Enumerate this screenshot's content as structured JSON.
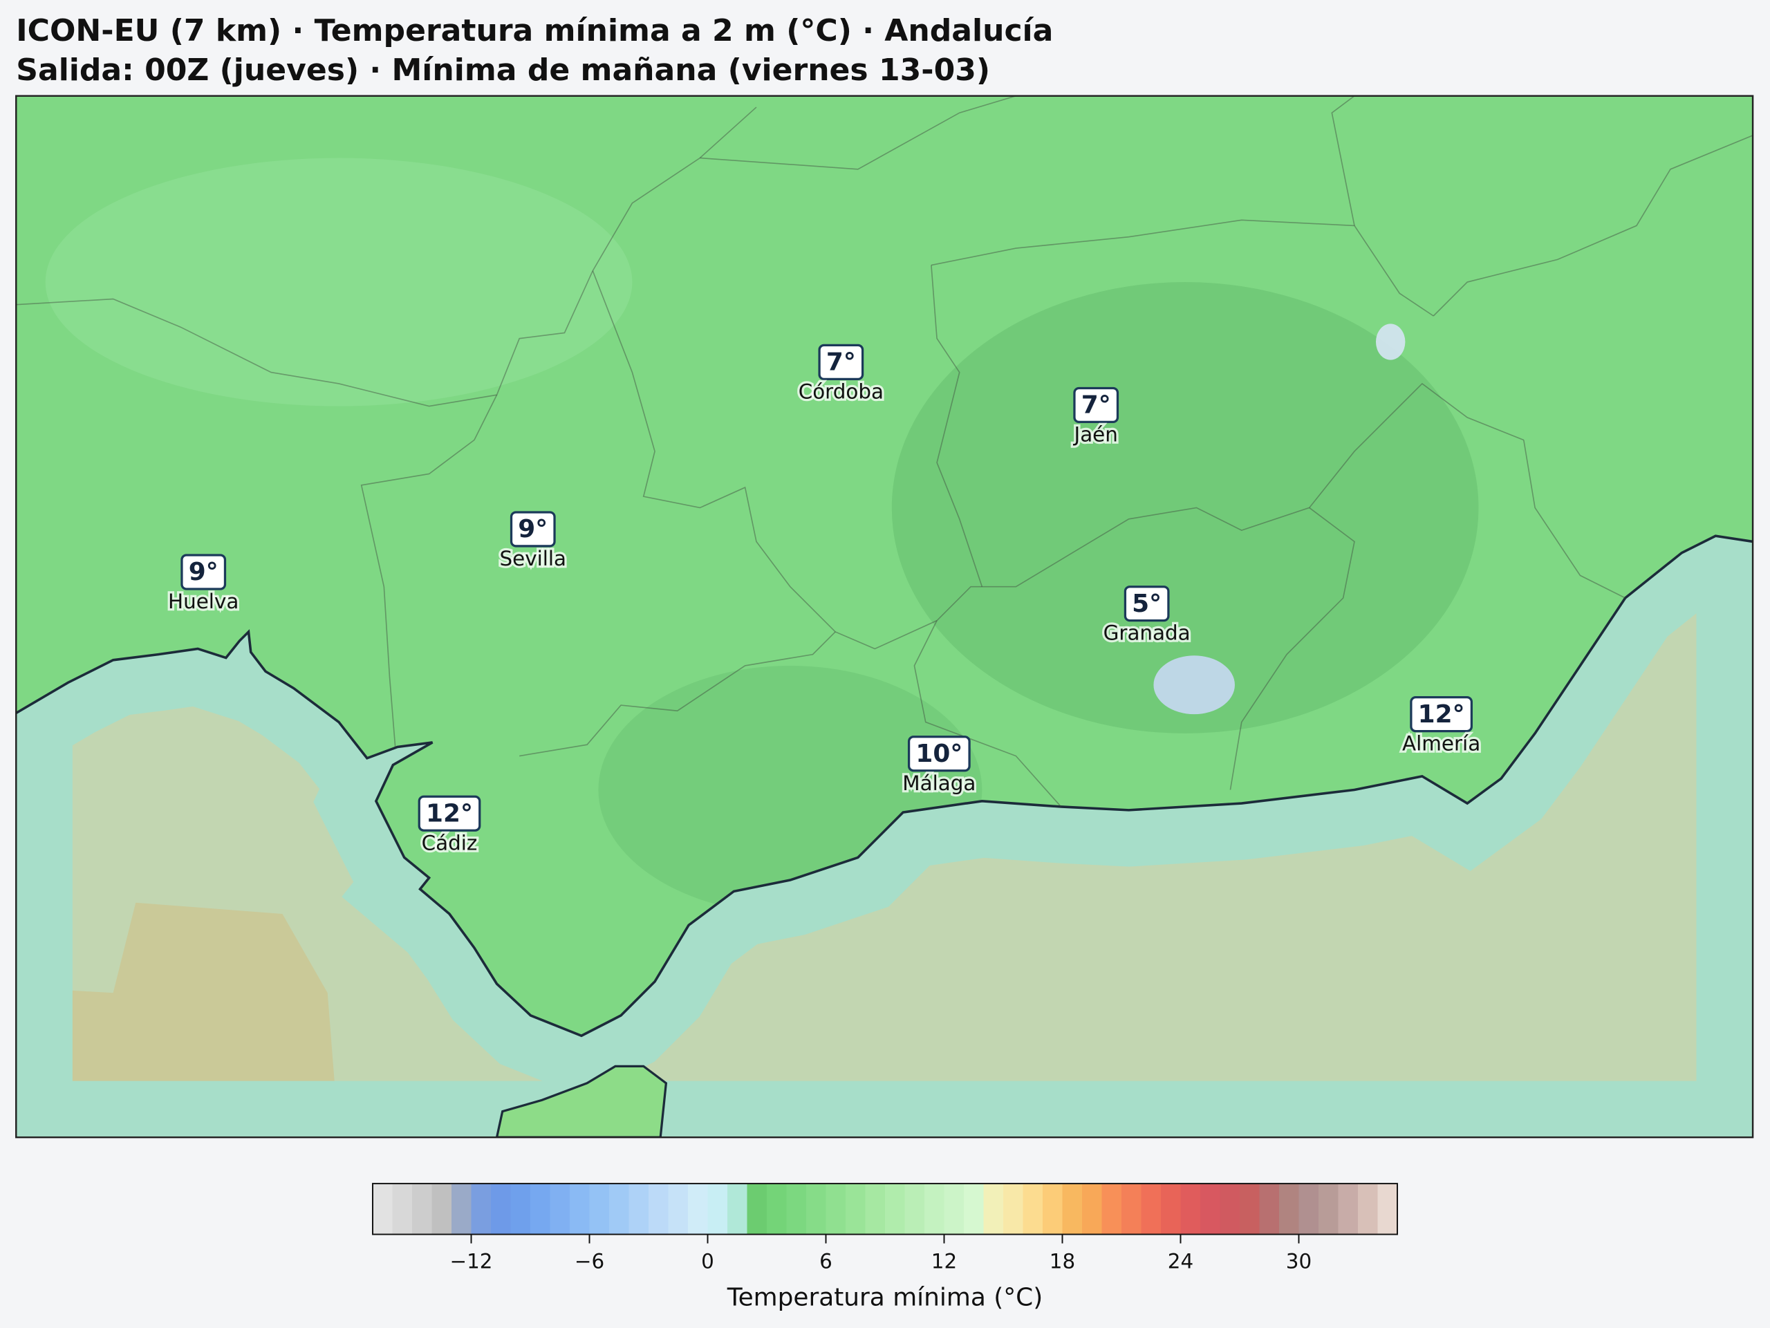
{
  "header": {
    "title": "ICON-EU (7 km) · Temperatura mínima a 2 m (°C) · Andalucía",
    "subtitle": "Salida: 00Z (jueves) · Mínima de mañana (viernes 13-03)"
  },
  "map": {
    "cities": [
      {
        "name": "Córdoba",
        "temp": "7°"
      },
      {
        "name": "Jaén",
        "temp": "7°"
      },
      {
        "name": "Sevilla",
        "temp": "9°"
      },
      {
        "name": "Huelva",
        "temp": "9°"
      },
      {
        "name": "Granada",
        "temp": "5°"
      },
      {
        "name": "Málaga",
        "temp": "10°"
      },
      {
        "name": "Almería",
        "temp": "12°"
      },
      {
        "name": "Cádiz",
        "temp": "12°"
      }
    ]
  },
  "colorbar": {
    "label": "Temperatura mínima (°C)",
    "clim": [
      -17,
      35
    ],
    "ticks": [
      {
        "value": -12,
        "label": "−12"
      },
      {
        "value": -6,
        "label": "−6"
      },
      0,
      6,
      12,
      18,
      24,
      30
    ],
    "colors": [
      "#e2e2e2",
      "#d8d8d8",
      "#cdcdcd",
      "#c0c0c0",
      "#9aaac8",
      "#7a9ee0",
      "#6e9ae8",
      "#6fa0ec",
      "#76a8f0",
      "#80b0f2",
      "#8abaf4",
      "#94c2f5",
      "#a0caf6",
      "#aed2f7",
      "#bcdaf8",
      "#c6e2f8",
      "#d0ecf8",
      "#c8eef4",
      "#b0e8d8",
      "#6ccc70",
      "#74d478",
      "#7cd880",
      "#86dc88",
      "#90e090",
      "#9ae498",
      "#a6e8a2",
      "#b0ecac",
      "#baeeb6",
      "#c4f2c0",
      "#ccf4c8",
      "#d6f8d0",
      "#f2f0b8",
      "#f8e8a8",
      "#fcdc90",
      "#fccc78",
      "#f8b860",
      "#f8a858",
      "#f89058",
      "#f48058",
      "#f07058",
      "#e86458",
      "#e05c5c",
      "#d85860",
      "#d05a60",
      "#c86060",
      "#b87070",
      "#b08480",
      "#b09090",
      "#b89c98",
      "#c8aca8",
      "#d8c0b8",
      "#e8d8d0"
    ]
  }
}
